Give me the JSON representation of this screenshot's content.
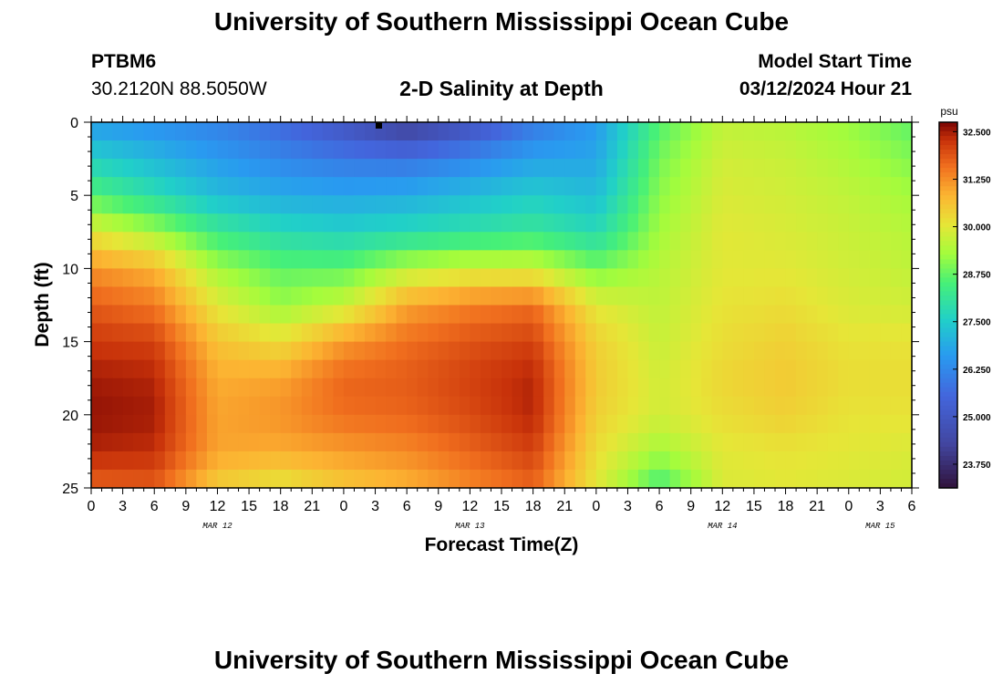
{
  "header": {
    "title": "University of Southern Mississippi Ocean Cube",
    "station_id": "PTBM6",
    "coordinates": "30.2120N  88.5050W",
    "subtitle": "2-D Salinity at Depth",
    "model_start_label": "Model Start Time",
    "model_start_value": "03/12/2024 Hour 21"
  },
  "footer": {
    "title": "University of Southern Mississippi Ocean Cube"
  },
  "chart_data": {
    "type": "heatmap",
    "title": "2-D Salinity at Depth",
    "xlabel": "Forecast Time(Z)",
    "ylabel": "Depth (ft)",
    "x_range_hours": [
      0,
      78
    ],
    "y_range_ft": [
      0,
      25
    ],
    "y_inverted": true,
    "x_ticks": [
      "0",
      "3",
      "6",
      "9",
      "12",
      "15",
      "18",
      "21",
      "0",
      "3",
      "6",
      "9",
      "12",
      "15",
      "18",
      "21",
      "0",
      "3",
      "6",
      "9",
      "12",
      "15",
      "18",
      "21",
      "0",
      "3",
      "6"
    ],
    "y_ticks": [
      "0",
      "5",
      "10",
      "15",
      "20",
      "25"
    ],
    "date_labels": [
      {
        "hour": 12,
        "label": "MAR 12"
      },
      {
        "hour": 36,
        "label": "MAR 13"
      },
      {
        "hour": 60,
        "label": "MAR 14"
      },
      {
        "hour": 75,
        "label": "MAR 15"
      }
    ],
    "colorbar": {
      "unit": "psu",
      "range": [
        23.125,
        32.75
      ],
      "tick_values": [
        32.5,
        31.25,
        30.0,
        28.75,
        27.5,
        26.25,
        25.0,
        23.75
      ],
      "tick_labels": [
        "32.500",
        "31.250",
        "30.000",
        "28.750",
        "27.500",
        "26.250",
        "25.000",
        "23.750"
      ]
    },
    "depth_rows_ft": [
      0,
      2.5,
      5,
      7.5,
      10,
      12.5,
      15,
      17.5,
      20,
      22.5,
      25
    ],
    "time_columns_hours": [
      0,
      6,
      12,
      18,
      24,
      30,
      36,
      42,
      48,
      54,
      60,
      66,
      72,
      78
    ],
    "salinity_psu": [
      [
        26.6,
        26.4,
        26.1,
        25.6,
        24.9,
        24.0,
        24.8,
        25.9,
        26.6,
        28.6,
        29.6,
        29.5,
        29.2,
        28.7
      ],
      [
        27.6,
        27.1,
        26.6,
        26.2,
        25.9,
        25.8,
        26.2,
        26.7,
        26.8,
        28.9,
        29.8,
        29.7,
        29.4,
        29.0
      ],
      [
        28.6,
        27.9,
        27.2,
        26.9,
        26.8,
        26.9,
        27.2,
        27.5,
        27.2,
        29.1,
        29.9,
        29.8,
        29.6,
        29.3
      ],
      [
        30.0,
        29.3,
        28.3,
        27.8,
        27.6,
        27.8,
        28.0,
        28.2,
        27.8,
        29.3,
        30.0,
        29.9,
        29.7,
        29.5
      ],
      [
        31.2,
        30.8,
        29.3,
        28.7,
        28.7,
        29.5,
        29.8,
        29.8,
        28.9,
        29.5,
        30.0,
        30.0,
        29.8,
        29.6
      ],
      [
        31.8,
        31.5,
        30.0,
        29.2,
        29.7,
        31.0,
        31.4,
        31.6,
        30.0,
        29.6,
        30.1,
        30.2,
        29.9,
        29.8
      ],
      [
        32.2,
        32.1,
        30.6,
        30.2,
        31.1,
        31.6,
        31.9,
        32.1,
        30.4,
        29.7,
        30.2,
        30.4,
        30.1,
        30.1
      ],
      [
        32.5,
        32.4,
        30.9,
        31.0,
        31.7,
        31.8,
        32.1,
        32.4,
        30.5,
        29.8,
        30.3,
        30.5,
        30.2,
        30.2
      ],
      [
        32.6,
        32.5,
        31.0,
        31.2,
        31.6,
        31.7,
        32.0,
        32.4,
        30.4,
        29.8,
        30.2,
        30.4,
        30.1,
        30.1
      ],
      [
        32.4,
        32.3,
        31.0,
        30.9,
        31.1,
        31.3,
        31.7,
        32.1,
        30.2,
        29.3,
        30.0,
        30.1,
        30.0,
        29.9
      ],
      [
        31.7,
        31.8,
        30.4,
        30.0,
        30.5,
        30.8,
        31.3,
        31.7,
        30.0,
        28.4,
        29.9,
        30.0,
        29.9,
        29.8
      ]
    ]
  }
}
